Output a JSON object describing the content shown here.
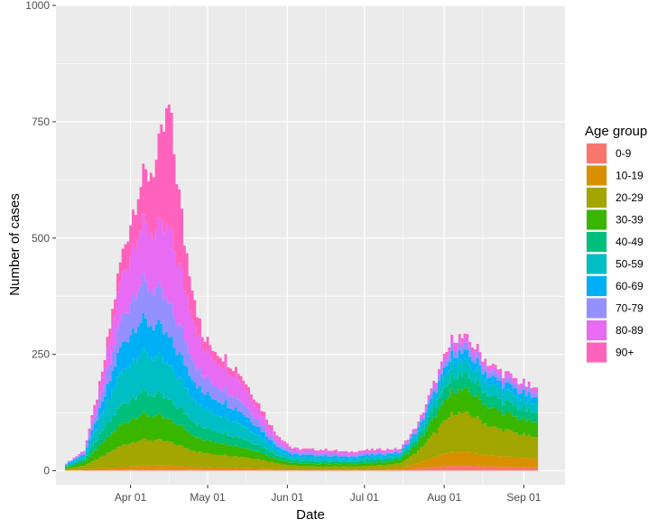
{
  "chart_data": {
    "type": "area",
    "stacked": true,
    "xlabel": "Date",
    "ylabel": "Number of cases",
    "x_range": [
      "2020-03-03",
      "2020-09-17"
    ],
    "ylim": [
      -30,
      1000
    ],
    "x_ticks": [
      {
        "date": "2020-04-01",
        "label": "Apr 01"
      },
      {
        "date": "2020-05-01",
        "label": "May 01"
      },
      {
        "date": "2020-06-01",
        "label": "Jun 01"
      },
      {
        "date": "2020-07-01",
        "label": "Jul 01"
      },
      {
        "date": "2020-08-01",
        "label": "Aug 01"
      },
      {
        "date": "2020-09-01",
        "label": "Sep 01"
      }
    ],
    "y_ticks": [
      {
        "value": 0,
        "label": "0"
      },
      {
        "value": 250,
        "label": "250"
      },
      {
        "value": 500,
        "label": "500"
      },
      {
        "value": 750,
        "label": "750"
      },
      {
        "value": 1000,
        "label": "1000"
      }
    ],
    "grid": true,
    "legend": {
      "title": "Age group",
      "placement": "right"
    },
    "x": [
      "2020-03-07",
      "2020-03-14",
      "2020-03-21",
      "2020-03-28",
      "2020-04-04",
      "2020-04-11",
      "2020-04-16",
      "2020-04-22",
      "2020-04-29",
      "2020-05-06",
      "2020-05-13",
      "2020-05-20",
      "2020-05-27",
      "2020-06-03",
      "2020-06-10",
      "2020-06-17",
      "2020-06-24",
      "2020-07-01",
      "2020-07-08",
      "2020-07-15",
      "2020-07-22",
      "2020-07-29",
      "2020-08-05",
      "2020-08-12",
      "2020-08-19",
      "2020-08-26",
      "2020-09-02",
      "2020-09-06"
    ],
    "series": [
      {
        "name": "0-9",
        "color": "#F8766D",
        "values": [
          0,
          1,
          1,
          2,
          3,
          3,
          3,
          3,
          2,
          2,
          2,
          2,
          1,
          1,
          1,
          1,
          1,
          1,
          1,
          2,
          5,
          8,
          11,
          10,
          9,
          8,
          7,
          7
        ]
      },
      {
        "name": "10-19",
        "color": "#D89000",
        "values": [
          1,
          2,
          4,
          6,
          8,
          9,
          8,
          7,
          6,
          6,
          5,
          4,
          3,
          2,
          2,
          2,
          2,
          2,
          3,
          4,
          12,
          22,
          30,
          28,
          24,
          22,
          20,
          19
        ]
      },
      {
        "name": "20-29",
        "color": "#A3A500",
        "values": [
          3,
          8,
          25,
          45,
          55,
          54,
          50,
          40,
          30,
          27,
          24,
          20,
          13,
          8,
          6,
          6,
          6,
          7,
          8,
          10,
          25,
          55,
          85,
          80,
          62,
          55,
          48,
          44
        ]
      },
      {
        "name": "30-39",
        "color": "#39B600",
        "values": [
          3,
          8,
          28,
          45,
          54,
          52,
          48,
          40,
          28,
          26,
          22,
          17,
          10,
          6,
          6,
          6,
          5,
          6,
          6,
          8,
          18,
          35,
          50,
          48,
          40,
          36,
          32,
          30
        ]
      },
      {
        "name": "40-49",
        "color": "#00BF7D",
        "values": [
          3,
          6,
          25,
          40,
          48,
          46,
          42,
          36,
          27,
          24,
          20,
          15,
          9,
          6,
          6,
          6,
          5,
          6,
          6,
          6,
          12,
          22,
          32,
          30,
          26,
          24,
          22,
          20
        ]
      },
      {
        "name": "50-59",
        "color": "#00BFC4",
        "values": [
          2,
          6,
          35,
          70,
          85,
          80,
          72,
          58,
          40,
          37,
          32,
          22,
          12,
          6,
          6,
          6,
          5,
          6,
          6,
          5,
          10,
          20,
          30,
          28,
          24,
          22,
          20,
          19
        ]
      },
      {
        "name": "60-69",
        "color": "#00B0F6",
        "values": [
          2,
          5,
          25,
          55,
          70,
          68,
          60,
          48,
          34,
          30,
          27,
          19,
          10,
          6,
          6,
          5,
          5,
          5,
          5,
          4,
          7,
          14,
          20,
          18,
          16,
          15,
          14,
          13
        ]
      },
      {
        "name": "70-79",
        "color": "#9590FF",
        "values": [
          1,
          4,
          22,
          55,
          80,
          78,
          72,
          55,
          35,
          30,
          26,
          17,
          9,
          5,
          5,
          5,
          4,
          4,
          4,
          3,
          5,
          10,
          15,
          14,
          12,
          11,
          10,
          9
        ]
      },
      {
        "name": "80-89",
        "color": "#E76BF3",
        "values": [
          1,
          3,
          28,
          85,
          120,
          124,
          160,
          110,
          60,
          50,
          43,
          25,
          12,
          6,
          6,
          6,
          5,
          5,
          5,
          4,
          6,
          9,
          13,
          12,
          10,
          9,
          8,
          8
        ]
      },
      {
        "name": "90+",
        "color": "#FF62BC",
        "values": [
          0,
          1,
          12,
          42,
          85,
          148,
          263,
          100,
          23,
          20,
          14,
          12,
          6,
          2,
          2,
          2,
          2,
          2,
          2,
          1,
          2,
          4,
          6,
          5,
          4,
          3,
          3,
          3
        ]
      }
    ]
  }
}
